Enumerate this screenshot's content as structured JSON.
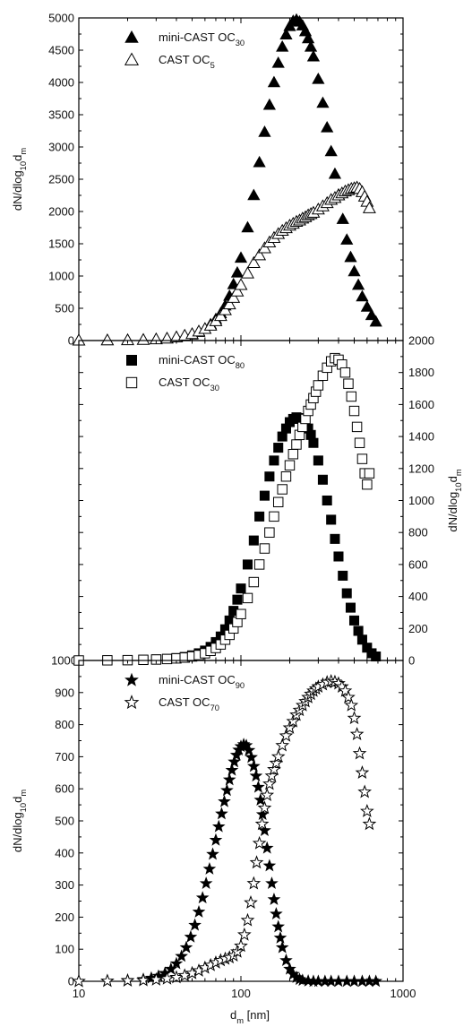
{
  "chart_data": [
    {
      "type": "scatter",
      "xscale": "log",
      "xlim": [
        10,
        1000
      ],
      "ylim": [
        0,
        5000
      ],
      "y_axis_side": "left",
      "ylabel": {
        "base": "dN/dlog",
        "sub1": "10",
        "mid": "d",
        "sub2": "m"
      },
      "yticks": [
        0,
        500,
        1000,
        1500,
        2000,
        2500,
        3000,
        3500,
        4000,
        4500,
        5000
      ],
      "legend": [
        {
          "label": "mini-CAST OC",
          "sub": "30",
          "marker": "triangle-filled"
        },
        {
          "label": "CAST OC",
          "sub": "5",
          "marker": "triangle-open"
        }
      ],
      "series": [
        {
          "name": "mini-CAST OC30",
          "marker": "triangle-filled",
          "x": [
            10,
            15,
            20,
            25,
            30,
            35,
            40,
            45,
            50,
            55,
            60,
            65,
            70,
            75,
            80,
            85,
            90,
            95,
            100,
            110,
            120,
            130,
            140,
            150,
            160,
            170,
            180,
            190,
            200,
            210,
            220,
            230,
            240,
            250,
            260,
            270,
            280,
            300,
            320,
            340,
            360,
            380,
            400,
            425,
            450,
            475,
            500,
            530,
            560,
            600,
            640,
            680
          ],
          "y": [
            0,
            2,
            4,
            10,
            18,
            30,
            45,
            65,
            90,
            130,
            180,
            250,
            330,
            420,
            540,
            690,
            870,
            1050,
            1280,
            1750,
            2250,
            2760,
            3230,
            3650,
            4000,
            4300,
            4550,
            4740,
            4870,
            4950,
            4970,
            4940,
            4880,
            4790,
            4680,
            4550,
            4400,
            4050,
            3680,
            3300,
            2930,
            2580,
            2260,
            1880,
            1560,
            1290,
            1070,
            860,
            680,
            520,
            390,
            290
          ]
        },
        {
          "name": "CAST OC5",
          "marker": "triangle-open",
          "x": [
            10,
            15,
            20,
            25,
            30,
            35,
            40,
            45,
            50,
            55,
            60,
            65,
            70,
            75,
            80,
            85,
            90,
            95,
            100,
            110,
            120,
            130,
            140,
            150,
            160,
            170,
            180,
            190,
            200,
            210,
            220,
            230,
            240,
            250,
            260,
            270,
            280,
            300,
            320,
            340,
            360,
            380,
            400,
            420,
            440,
            460,
            480,
            500,
            520,
            540,
            560,
            580,
            600,
            620
          ],
          "y": [
            0,
            2,
            5,
            10,
            18,
            30,
            50,
            75,
            100,
            140,
            180,
            230,
            300,
            380,
            470,
            560,
            660,
            760,
            860,
            1040,
            1200,
            1320,
            1430,
            1520,
            1590,
            1650,
            1700,
            1740,
            1780,
            1810,
            1840,
            1860,
            1890,
            1910,
            1940,
            1960,
            1980,
            2030,
            2080,
            2130,
            2180,
            2210,
            2250,
            2280,
            2310,
            2330,
            2350,
            2360,
            2370,
            2350,
            2300,
            2230,
            2150,
            2050
          ]
        }
      ]
    },
    {
      "type": "scatter",
      "xscale": "log",
      "xlim": [
        10,
        1000
      ],
      "ylim": [
        0,
        2000
      ],
      "y_axis_side": "right",
      "left_axis_label": "1000",
      "ylabel": {
        "base": "dN/dlog",
        "sub1": "10",
        "mid": "d",
        "sub2": "m"
      },
      "yticks": [
        0,
        200,
        400,
        600,
        800,
        1000,
        1200,
        1400,
        1600,
        1800,
        2000
      ],
      "legend": [
        {
          "label": "mini-CAST OC",
          "sub": "80",
          "marker": "square-filled"
        },
        {
          "label": "CAST OC",
          "sub": "30",
          "marker": "square-open"
        }
      ],
      "series": [
        {
          "name": "mini-CAST OC80",
          "marker": "square-filled",
          "x": [
            10,
            15,
            20,
            25,
            30,
            35,
            40,
            45,
            50,
            55,
            60,
            65,
            70,
            75,
            80,
            85,
            90,
            95,
            100,
            110,
            120,
            130,
            140,
            150,
            160,
            170,
            180,
            190,
            200,
            210,
            220,
            230,
            240,
            250,
            260,
            270,
            280,
            300,
            320,
            340,
            360,
            380,
            400,
            425,
            450,
            475,
            500,
            530,
            560,
            600,
            640,
            680
          ],
          "y": [
            0,
            1,
            2,
            4,
            7,
            10,
            15,
            22,
            32,
            45,
            62,
            85,
            115,
            150,
            195,
            250,
            310,
            380,
            450,
            600,
            750,
            900,
            1030,
            1150,
            1250,
            1330,
            1400,
            1450,
            1490,
            1510,
            1520,
            1515,
            1500,
            1480,
            1450,
            1410,
            1360,
            1250,
            1130,
            1000,
            880,
            760,
            650,
            530,
            420,
            330,
            250,
            185,
            130,
            80,
            45,
            25
          ]
        },
        {
          "name": "CAST OC30",
          "marker": "square-open",
          "x": [
            10,
            15,
            20,
            25,
            30,
            35,
            40,
            45,
            50,
            55,
            60,
            65,
            70,
            75,
            80,
            85,
            90,
            95,
            100,
            110,
            120,
            130,
            140,
            150,
            160,
            170,
            180,
            190,
            200,
            210,
            220,
            230,
            240,
            250,
            260,
            270,
            280,
            290,
            300,
            320,
            340,
            360,
            380,
            400,
            420,
            440,
            460,
            480,
            500,
            520,
            540,
            560,
            580,
            600,
            620
          ],
          "y": [
            0,
            1,
            2,
            4,
            6,
            9,
            13,
            18,
            25,
            34,
            45,
            60,
            78,
            100,
            130,
            160,
            200,
            240,
            290,
            390,
            490,
            600,
            700,
            800,
            900,
            990,
            1070,
            1150,
            1220,
            1290,
            1350,
            1410,
            1460,
            1510,
            1560,
            1600,
            1640,
            1680,
            1720,
            1780,
            1830,
            1870,
            1890,
            1880,
            1850,
            1800,
            1730,
            1650,
            1560,
            1460,
            1360,
            1260,
            1170,
            1100,
            1170
          ]
        }
      ]
    },
    {
      "type": "scatter",
      "xscale": "log",
      "xlim": [
        10,
        1000
      ],
      "ylim": [
        0,
        1000
      ],
      "y_axis_side": "left",
      "xlabel": {
        "base": "d",
        "sub": "m",
        "rest": " [nm]"
      },
      "xticks": [
        10,
        100,
        1000
      ],
      "ylabel": {
        "base": "dN/dlog",
        "sub1": "10",
        "mid": "d",
        "sub2": "m"
      },
      "yticks": [
        0,
        100,
        200,
        300,
        400,
        500,
        600,
        700,
        800,
        900
      ],
      "legend": [
        {
          "label": "mini-CAST OC",
          "sub": "90",
          "marker": "star-filled"
        },
        {
          "label": "CAST OC",
          "sub": "70",
          "marker": "star-open"
        }
      ],
      "series": [
        {
          "name": "mini-CAST OC90",
          "marker": "star-filled",
          "x": [
            10,
            15,
            20,
            25,
            28,
            31,
            34,
            37,
            40,
            43,
            46,
            49,
            52,
            55,
            58,
            61,
            64,
            67,
            70,
            73,
            76,
            79,
            82,
            85,
            88,
            91,
            94,
            97,
            100,
            104,
            108,
            112,
            116,
            120,
            124,
            128,
            132,
            136,
            140,
            145,
            150,
            155,
            160,
            165,
            170,
            175,
            180,
            190,
            200,
            210,
            220,
            230,
            240,
            260,
            280,
            300,
            330,
            360,
            400,
            450,
            500,
            560,
            620,
            680
          ],
          "y": [
            0,
            1,
            3,
            6,
            10,
            16,
            25,
            38,
            55,
            78,
            105,
            138,
            175,
            216,
            260,
            305,
            350,
            396,
            440,
            482,
            522,
            560,
            595,
            628,
            658,
            684,
            705,
            721,
            732,
            738,
            735,
            720,
            698,
            670,
            640,
            605,
            565,
            520,
            470,
            415,
            360,
            305,
            255,
            210,
            170,
            135,
            105,
            65,
            38,
            22,
            12,
            6,
            3,
            1,
            0,
            0,
            0,
            0,
            0,
            0,
            0,
            0,
            0,
            0
          ]
        },
        {
          "name": "CAST OC70",
          "marker": "star-open",
          "x": [
            10,
            15,
            20,
            25,
            30,
            35,
            40,
            45,
            50,
            55,
            60,
            65,
            70,
            75,
            80,
            85,
            90,
            95,
            100,
            105,
            110,
            115,
            120,
            125,
            130,
            135,
            140,
            145,
            150,
            155,
            160,
            165,
            170,
            180,
            190,
            200,
            210,
            220,
            230,
            240,
            250,
            260,
            270,
            280,
            290,
            300,
            320,
            340,
            360,
            380,
            400,
            420,
            440,
            460,
            480,
            500,
            520,
            540,
            560,
            580,
            600,
            620
          ],
          "y": [
            0,
            1,
            2,
            3,
            5,
            8,
            12,
            18,
            25,
            33,
            42,
            50,
            58,
            65,
            70,
            74,
            80,
            92,
            110,
            145,
            190,
            245,
            305,
            370,
            430,
            490,
            540,
            580,
            615,
            640,
            660,
            680,
            700,
            735,
            765,
            790,
            810,
            830,
            845,
            860,
            872,
            885,
            895,
            905,
            912,
            918,
            925,
            932,
            935,
            933,
            928,
            918,
            905,
            885,
            860,
            820,
            770,
            710,
            650,
            590,
            530,
            490
          ]
        }
      ]
    }
  ]
}
